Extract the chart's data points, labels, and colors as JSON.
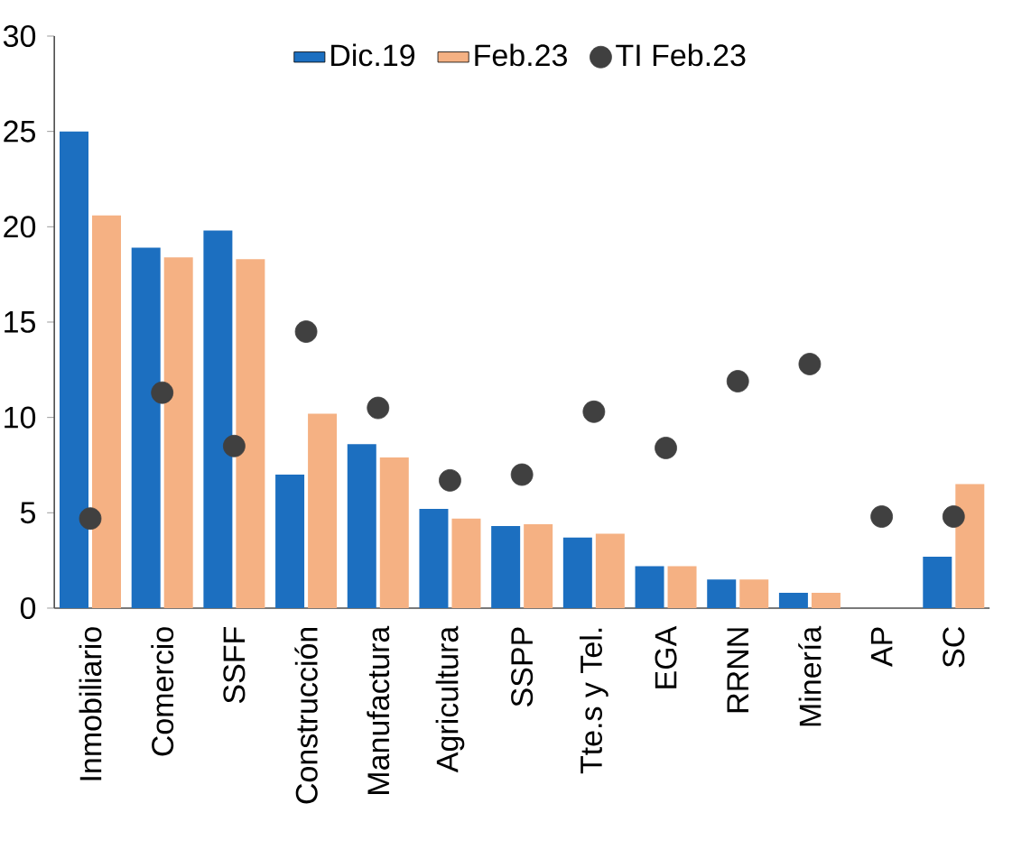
{
  "chart_data": {
    "type": "bar",
    "categories": [
      "Inmobiliario",
      "Comercio",
      "SSFF",
      "Construcción",
      "Manufactura",
      "Agricultura",
      "SSPP",
      "Tte.s y Tel.",
      "EGA",
      "RRNN",
      "Minería",
      "AP",
      "SC"
    ],
    "series": [
      {
        "name": "Dic.19",
        "color": "#1c6fc0",
        "values": [
          25.0,
          18.9,
          19.8,
          7.0,
          8.6,
          5.2,
          4.3,
          3.7,
          2.2,
          1.5,
          0.8,
          null,
          2.7
        ]
      },
      {
        "name": "Feb.23",
        "color": "#f5b183",
        "values": [
          20.6,
          18.4,
          18.3,
          10.2,
          7.9,
          4.7,
          4.4,
          3.9,
          2.2,
          1.5,
          0.8,
          null,
          6.5
        ]
      },
      {
        "name": "TI Feb.23",
        "type": "scatter",
        "color": "#404040",
        "marker": "circle",
        "values": [
          4.7,
          11.3,
          8.5,
          14.5,
          10.5,
          6.7,
          7.0,
          10.3,
          8.4,
          11.9,
          12.8,
          4.8,
          4.8
        ]
      }
    ],
    "ylim": [
      0,
      30
    ],
    "yticks": [
      0,
      5,
      10,
      15,
      20,
      25,
      30
    ],
    "legend": "top",
    "grid": false
  }
}
